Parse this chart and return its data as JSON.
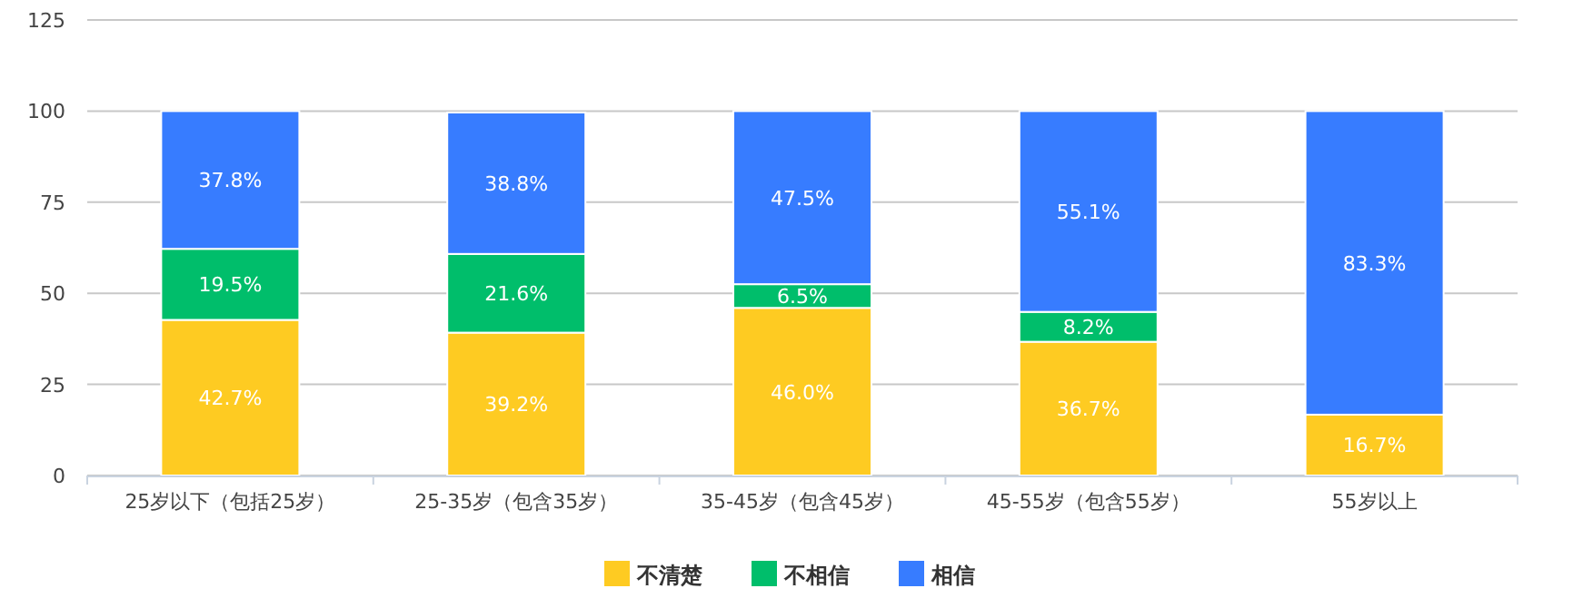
{
  "chart_data": {
    "type": "bar",
    "stacked": true,
    "categories": [
      "25岁以下（包括25岁）",
      "25-35岁（包含35岁）",
      "35-45岁（包含45岁）",
      "45-55岁（包含55岁）",
      "55岁以上"
    ],
    "series": [
      {
        "name": "不清楚",
        "color": "#fecb22",
        "values": [
          42.7,
          39.2,
          46.0,
          36.7,
          16.7
        ],
        "value_labels": [
          "42.7%",
          "39.2%",
          "46.0%",
          "36.7%",
          "16.7%"
        ]
      },
      {
        "name": "不相信",
        "color": "#00be6b",
        "values": [
          19.5,
          21.6,
          6.5,
          8.2,
          0
        ],
        "value_labels": [
          "19.5%",
          "21.6%",
          "6.5%",
          "8.2%",
          null
        ]
      },
      {
        "name": "相信",
        "color": "#377cff",
        "values": [
          37.8,
          38.8,
          47.5,
          55.1,
          83.3
        ],
        "value_labels": [
          "37.8%",
          "38.8%",
          "47.5%",
          "55.1%",
          "83.3%"
        ]
      }
    ],
    "ylim": [
      0,
      125
    ],
    "yticks": [
      0,
      25,
      50,
      75,
      100,
      125
    ],
    "grid": "y",
    "legend": "bottom"
  }
}
